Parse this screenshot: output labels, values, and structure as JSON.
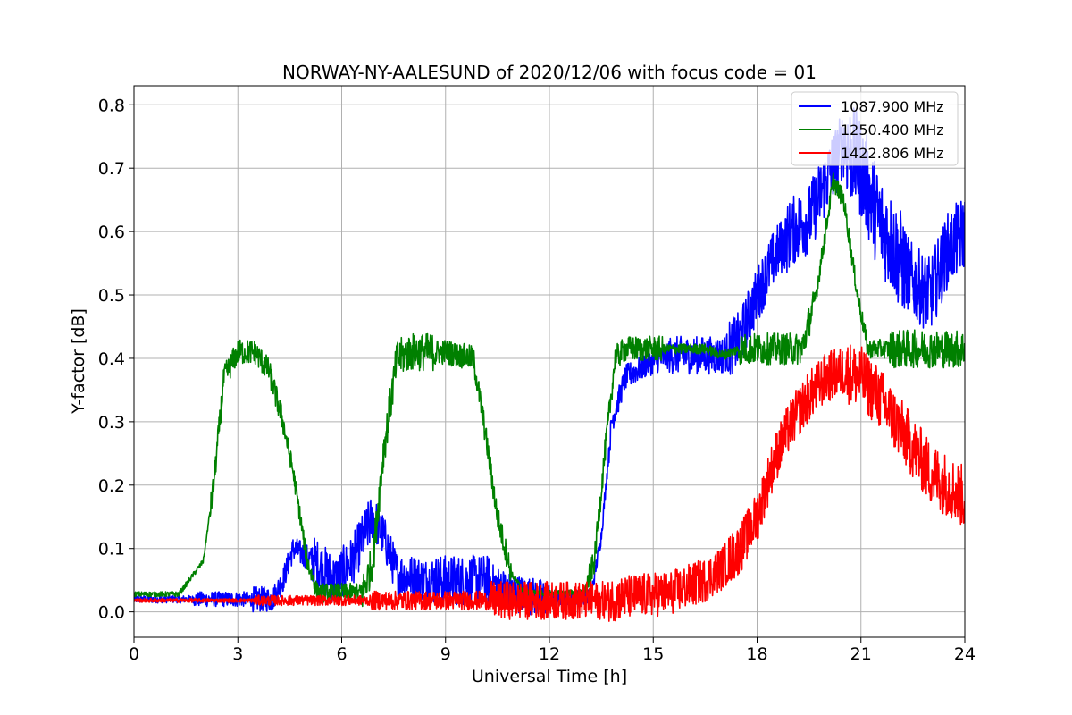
{
  "chart_data": {
    "type": "line",
    "title": "NORWAY-NY-AALESUND of 2020/12/06 with focus code = 01",
    "xlabel": "Universal Time [h]",
    "ylabel": "Y-factor [dB]",
    "xlim": [
      0,
      24
    ],
    "ylim": [
      -0.04,
      0.83
    ],
    "xticks": [
      0,
      3,
      6,
      9,
      12,
      15,
      18,
      21,
      24
    ],
    "yticks": [
      0.0,
      0.1,
      0.2,
      0.3,
      0.4,
      0.5,
      0.6,
      0.7,
      0.8
    ],
    "grid": true,
    "legend_position": "top-right",
    "series": [
      {
        "name": "1087.900 MHz",
        "color": "#0000ff",
        "noise": [
          0.006,
          0.012,
          0.02,
          0.04,
          0.035,
          0.04,
          0.03,
          0.012,
          0.02,
          0.03,
          0.045,
          0.055,
          0.08,
          0.06
        ],
        "x": [
          0,
          4.0,
          4.3,
          4.6,
          5.2,
          5.8,
          6.3,
          6.9,
          7.2,
          7.6,
          8.5,
          9.5,
          10.2,
          11.0,
          12.0,
          13.2,
          13.5,
          13.8,
          14.2,
          14.8,
          15.5,
          16.5,
          17.0,
          17.5,
          18.0,
          18.5,
          19.0,
          19.5,
          20.0,
          20.5,
          21.0,
          21.5,
          22.0,
          22.5,
          23.0,
          23.5,
          24.0
        ],
        "y": [
          0.02,
          0.02,
          0.05,
          0.1,
          0.08,
          0.05,
          0.08,
          0.15,
          0.12,
          0.06,
          0.05,
          0.05,
          0.05,
          0.03,
          0.02,
          0.025,
          0.12,
          0.3,
          0.37,
          0.39,
          0.405,
          0.405,
          0.405,
          0.43,
          0.5,
          0.56,
          0.6,
          0.62,
          0.68,
          0.74,
          0.7,
          0.62,
          0.57,
          0.52,
          0.5,
          0.57,
          0.6
        ]
      },
      {
        "name": "1250.400 MHz",
        "color": "#008000",
        "noise": [
          0.004,
          0.02,
          0.015,
          0.03,
          0.02,
          0.005,
          0.02,
          0.008,
          0.025,
          0.015,
          0.03
        ],
        "x": [
          0,
          1.3,
          2.0,
          2.3,
          2.6,
          3.0,
          3.5,
          3.9,
          4.3,
          4.6,
          5.0,
          5.3,
          6.6,
          6.9,
          7.2,
          7.6,
          8.0,
          9.0,
          9.8,
          10.1,
          10.5,
          10.9,
          11.3,
          13.0,
          13.3,
          13.6,
          13.9,
          14.2,
          16.5,
          17.0,
          17.5,
          19.3,
          19.7,
          20.2,
          20.5,
          20.9,
          21.2,
          24.0
        ],
        "y": [
          0.028,
          0.028,
          0.08,
          0.2,
          0.37,
          0.41,
          0.41,
          0.38,
          0.3,
          0.22,
          0.08,
          0.03,
          0.03,
          0.08,
          0.25,
          0.4,
          0.41,
          0.41,
          0.4,
          0.3,
          0.15,
          0.06,
          0.03,
          0.03,
          0.08,
          0.25,
          0.4,
          0.415,
          0.415,
          0.405,
          0.415,
          0.415,
          0.5,
          0.68,
          0.65,
          0.5,
          0.415,
          0.415
        ]
      },
      {
        "name": "1422.806 MHz",
        "color": "#ff0000",
        "noise": [
          0.003,
          0.008,
          0.015,
          0.03,
          0.035,
          0.04,
          0.05
        ],
        "x": [
          0,
          13.5,
          14.5,
          15.5,
          16.5,
          17.0,
          17.5,
          18.0,
          18.5,
          19.0,
          19.5,
          20.0,
          20.5,
          21.0,
          21.5,
          22.0,
          22.5,
          23.0,
          23.5,
          24.0
        ],
        "y": [
          0.018,
          0.018,
          0.025,
          0.03,
          0.05,
          0.07,
          0.1,
          0.15,
          0.24,
          0.3,
          0.34,
          0.37,
          0.38,
          0.37,
          0.34,
          0.3,
          0.26,
          0.22,
          0.2,
          0.18
        ]
      }
    ]
  }
}
